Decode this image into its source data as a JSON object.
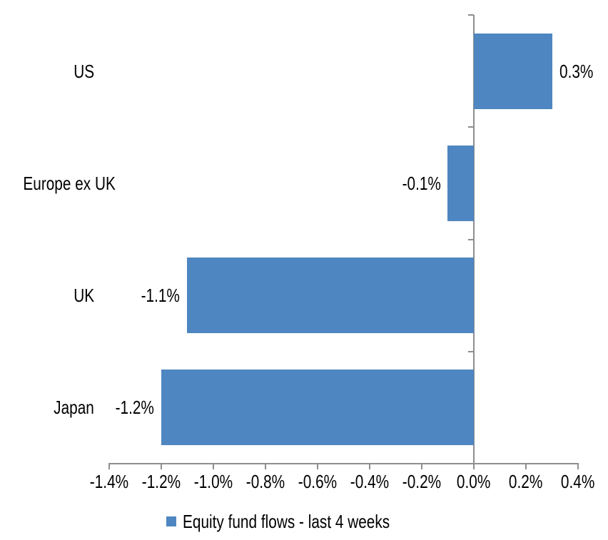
{
  "chart_data": {
    "type": "bar",
    "orientation": "horizontal",
    "title": "",
    "categories": [
      "US",
      "Europe ex UK",
      "UK",
      "Japan"
    ],
    "values": [
      0.3,
      -0.1,
      -1.1,
      -1.2
    ],
    "data_labels": [
      "0.3%",
      "-0.1%",
      "-1.1%",
      "-1.2%"
    ],
    "series_name": "Equity fund flows - last 4 weeks",
    "unit": "%",
    "xlim": [
      -1.4,
      0.4
    ],
    "x_ticks": [
      {
        "value": -1.4,
        "label": "-1.4%"
      },
      {
        "value": -1.2,
        "label": "-1.2%"
      },
      {
        "value": -1.0,
        "label": "-1.0%"
      },
      {
        "value": -0.8,
        "label": "-0.8%"
      },
      {
        "value": -0.6,
        "label": "-0.6%"
      },
      {
        "value": -0.4,
        "label": "-0.4%"
      },
      {
        "value": -0.2,
        "label": "-0.2%"
      },
      {
        "value": 0.0,
        "label": "0.0%"
      },
      {
        "value": 0.2,
        "label": "0.2%"
      },
      {
        "value": 0.4,
        "label": "0.4%"
      }
    ],
    "grid": false,
    "legend_position": "bottom",
    "colors": {
      "bar": "#4E86C1",
      "axis": "#8E8E8E",
      "text": "#000000",
      "background": "#FFFFFF"
    }
  }
}
